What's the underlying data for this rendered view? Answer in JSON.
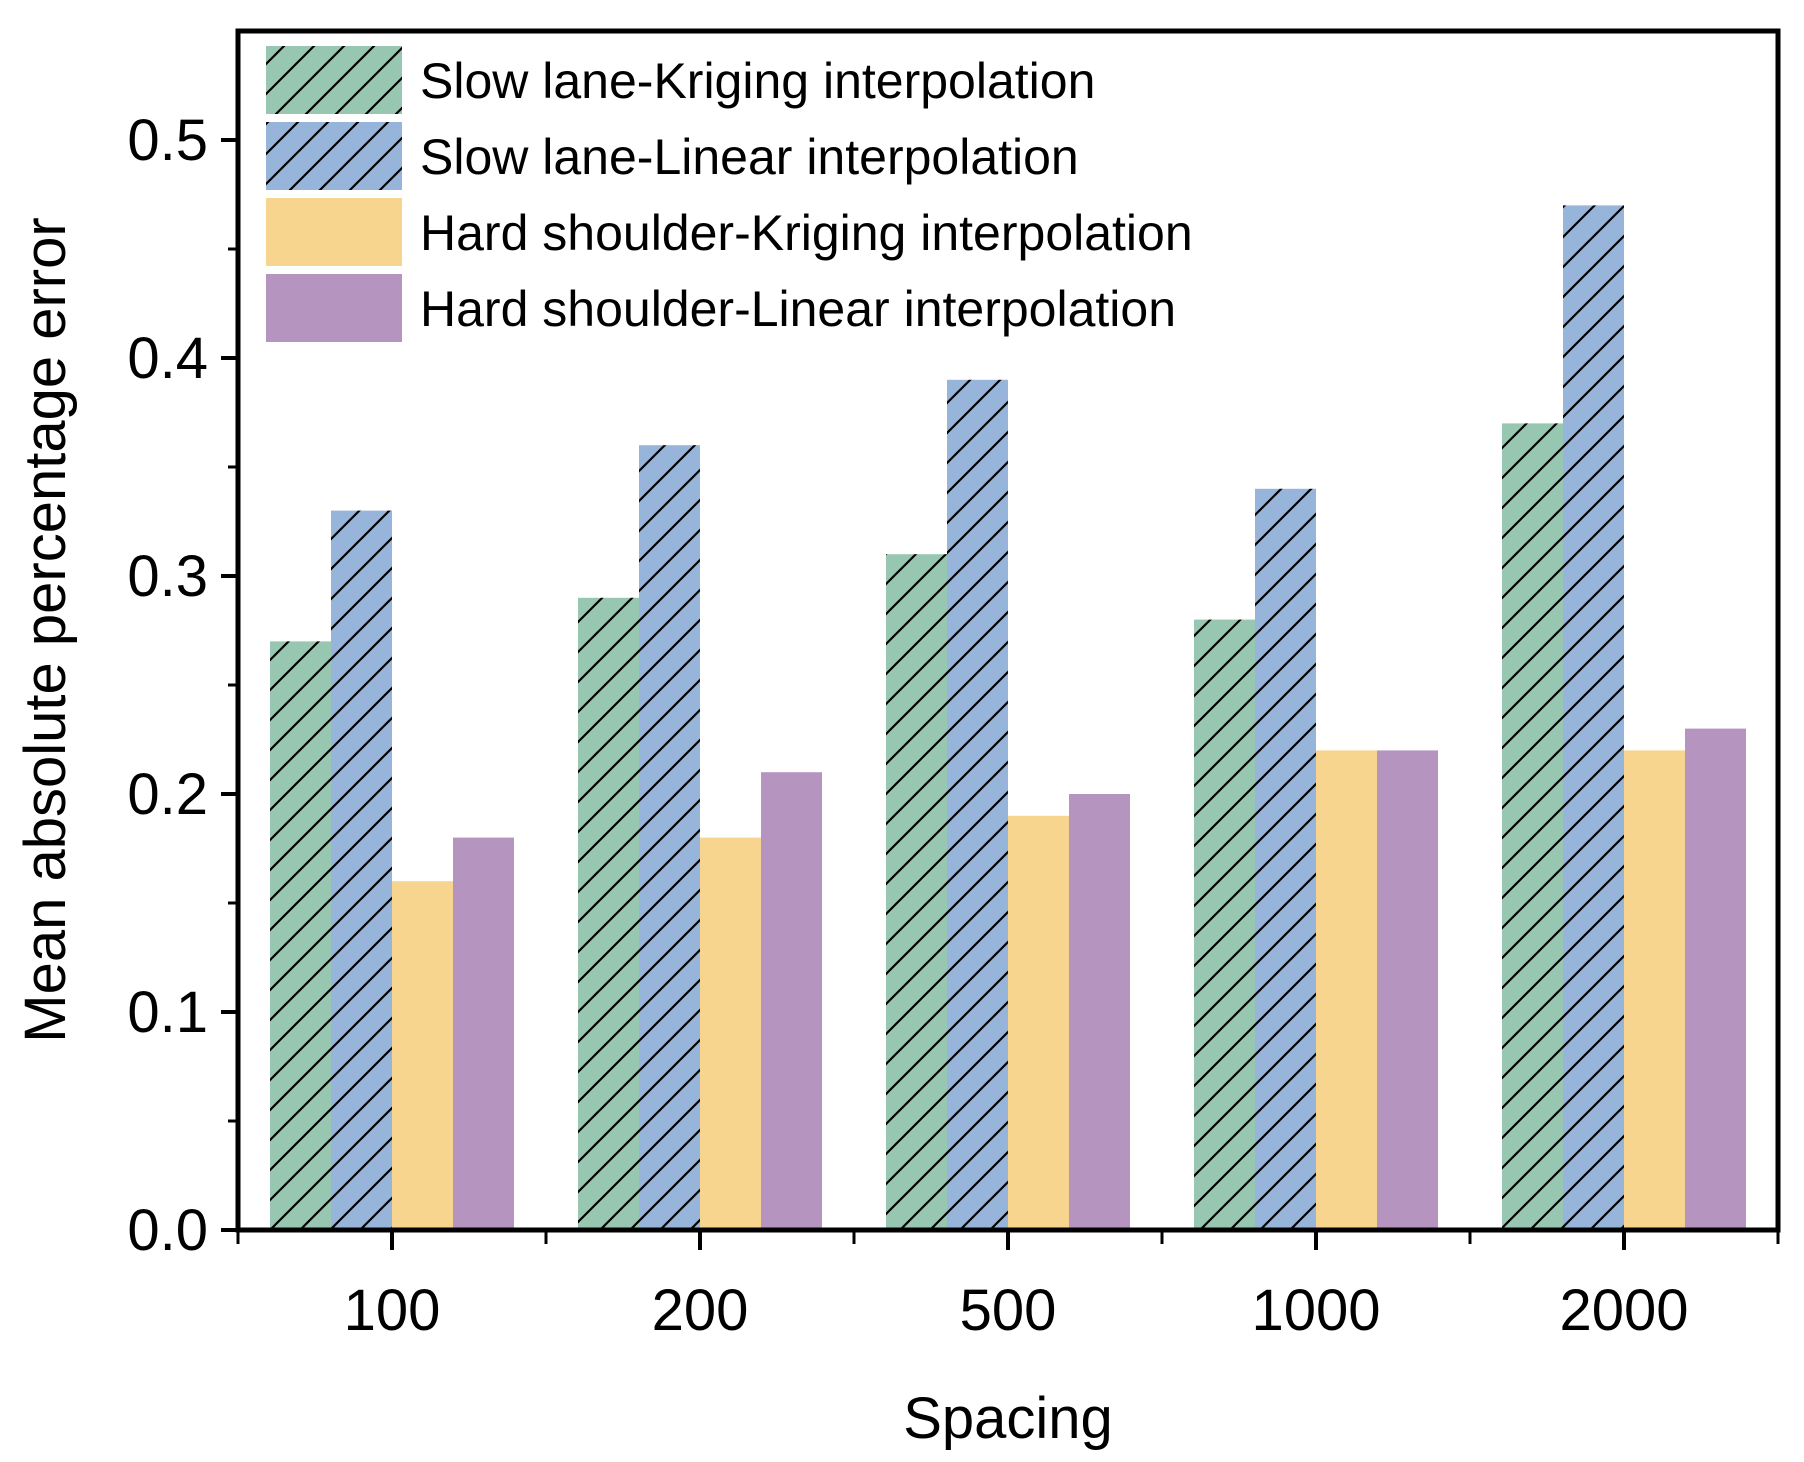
{
  "chart_data": {
    "type": "bar",
    "title": "",
    "xlabel": "Spacing",
    "ylabel": "Mean absolute percentage error",
    "categories": [
      "100",
      "200",
      "500",
      "1000",
      "2000"
    ],
    "ylim": [
      0,
      0.55
    ],
    "yticks": [
      "0.0",
      "0.1",
      "0.2",
      "0.3",
      "0.4",
      "0.5"
    ],
    "legend_position": "top-left",
    "series": [
      {
        "name": " Slow lane-Kriging interpolation",
        "color": "#97c7b1",
        "hatch": "diagonal",
        "values": [
          0.27,
          0.29,
          0.31,
          0.28,
          0.37
        ]
      },
      {
        "name": "Slow lane-Linear interpolation",
        "color": "#97b5da",
        "hatch": "diagonal",
        "values": [
          0.33,
          0.36,
          0.39,
          0.34,
          0.47
        ]
      },
      {
        "name": "Hard shoulder-Kriging interpolation",
        "color": "#f7d58e",
        "hatch": "none",
        "values": [
          0.16,
          0.18,
          0.19,
          0.22,
          0.22
        ]
      },
      {
        "name": "Hard shoulder-Linear interpolation",
        "color": "#b594c0",
        "hatch": "none",
        "values": [
          0.18,
          0.21,
          0.2,
          0.22,
          0.23
        ]
      }
    ]
  }
}
